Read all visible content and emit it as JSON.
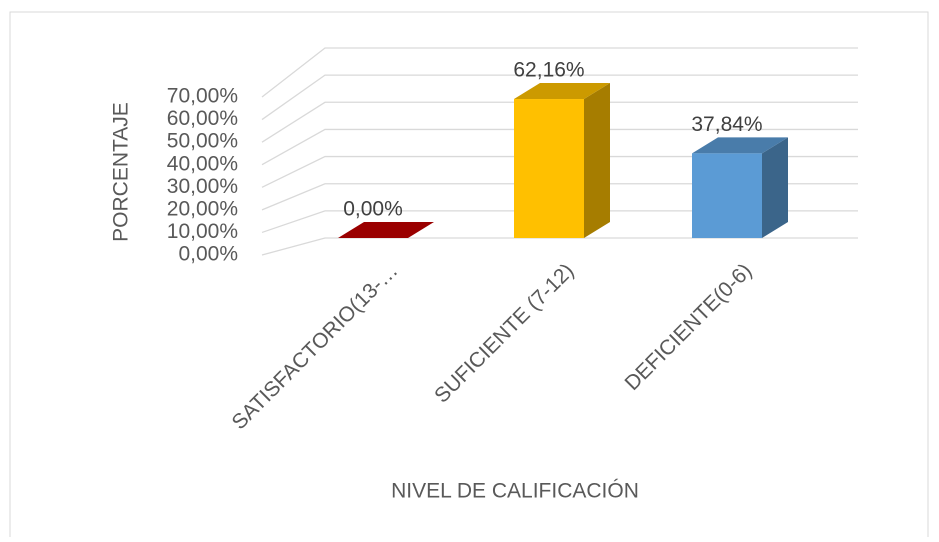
{
  "chart_data": {
    "type": "bar3d",
    "xlabel": "NIVEL DE CALIFICACIÓN",
    "ylabel": "PORCENTAJE",
    "categories": [
      "SATISFACTORIO(13-…",
      "SUFICIENTE (7-12)",
      "DEFICIENTE(0-6)"
    ],
    "values": [
      0,
      62.16,
      37.84
    ],
    "value_labels": [
      "0,00%",
      "62,16%",
      "37,84%"
    ],
    "colors": [
      "#c00000",
      "#ffc000",
      "#5b9bd5"
    ],
    "ylim": [
      0,
      70
    ],
    "yticks": [
      {
        "value": 0,
        "label": "0,00%"
      },
      {
        "value": 10,
        "label": "10,00%"
      },
      {
        "value": 20,
        "label": "20,00%"
      },
      {
        "value": 30,
        "label": "30,00%"
      },
      {
        "value": 40,
        "label": "40,00%"
      },
      {
        "value": 50,
        "label": "50,00%"
      },
      {
        "value": 60,
        "label": "60,00%"
      },
      {
        "value": 70,
        "label": "70,00%"
      }
    ],
    "grid": true
  }
}
